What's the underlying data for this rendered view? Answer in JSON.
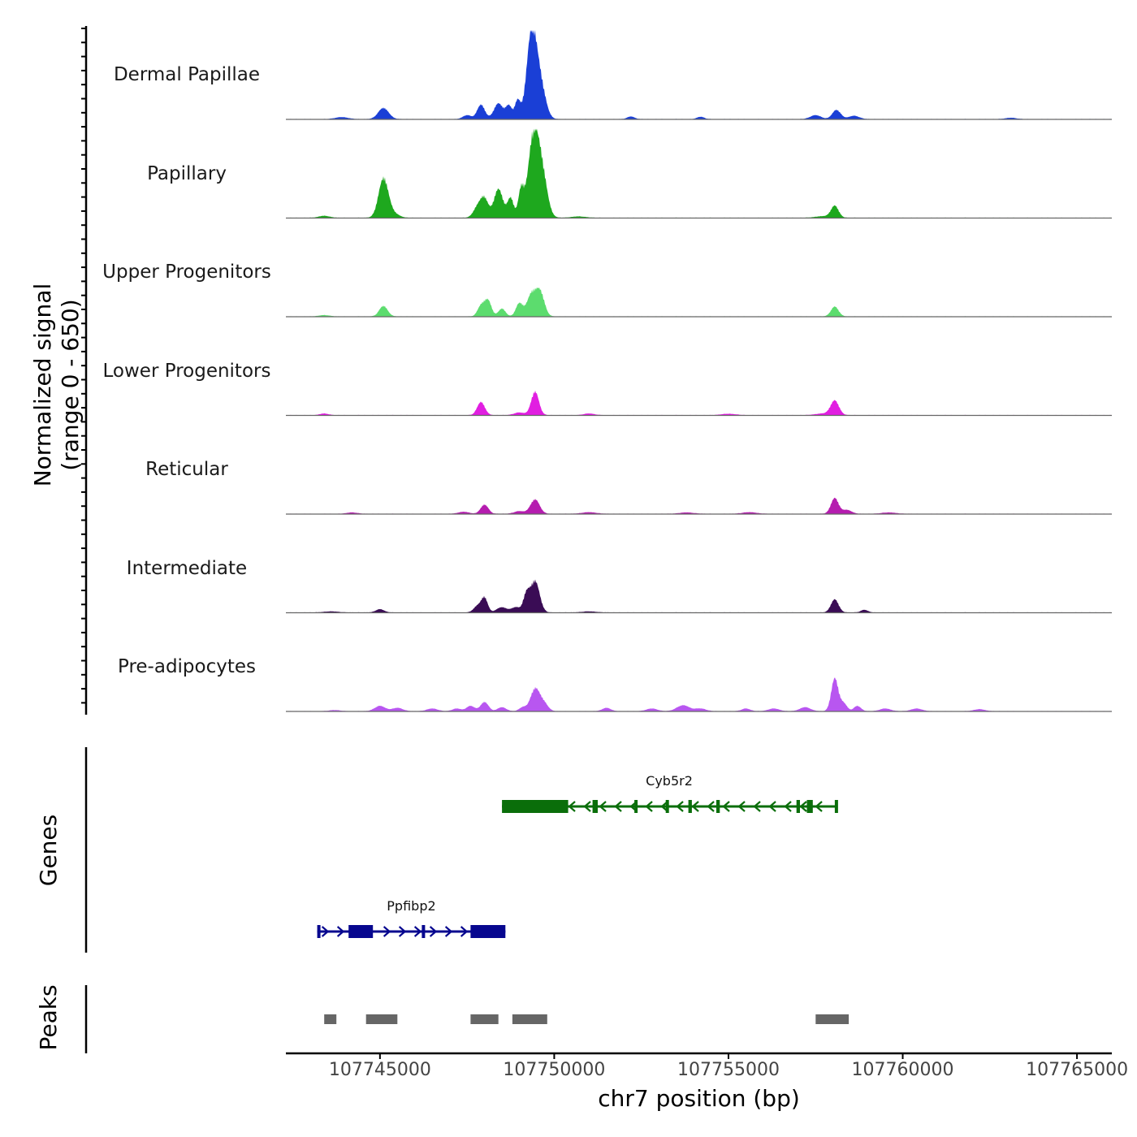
{
  "chart_data": {
    "type": "area",
    "title": "",
    "ylabel": [
      "Normalized signal",
      "(range 0 - 650)"
    ],
    "ylim": [
      0,
      650
    ],
    "xlabel": "chr7 position (bp)",
    "xlim": [
      107742300,
      107766000
    ],
    "x_ticks": [
      107745000,
      107750000,
      107755000,
      107760000,
      107765000
    ],
    "x_tick_labels": [
      "107745000",
      "107750000",
      "107755000",
      "107760000",
      "107765000"
    ],
    "tracks": [
      {
        "name": "Dermal Papillae",
        "color": "#1a3fd6",
        "peaks": [
          [
            107743900,
            15,
            180
          ],
          [
            107745100,
            85,
            150
          ],
          [
            107747500,
            30,
            120
          ],
          [
            107747900,
            110,
            110
          ],
          [
            107748400,
            120,
            130
          ],
          [
            107748700,
            100,
            90
          ],
          [
            107748950,
            140,
            80
          ],
          [
            107749350,
            650,
            140
          ],
          [
            107749600,
            260,
            150
          ],
          [
            107752200,
            20,
            100
          ],
          [
            107754200,
            18,
            100
          ],
          [
            107757500,
            30,
            150
          ],
          [
            107758100,
            70,
            120
          ],
          [
            107758600,
            25,
            150
          ],
          [
            107763100,
            10,
            150
          ]
        ]
      },
      {
        "name": "Papillary",
        "color": "#1ea81e",
        "peaks": [
          [
            107743400,
            15,
            150
          ],
          [
            107745100,
            300,
            140
          ],
          [
            107745400,
            30,
            150
          ],
          [
            107747800,
            80,
            120
          ],
          [
            107748000,
            140,
            110
          ],
          [
            107748400,
            220,
            130
          ],
          [
            107748750,
            150,
            90
          ],
          [
            107749050,
            210,
            80
          ],
          [
            107749400,
            600,
            150
          ],
          [
            107749650,
            320,
            150
          ],
          [
            107750700,
            10,
            200
          ],
          [
            107758050,
            90,
            110
          ],
          [
            107757700,
            12,
            200
          ]
        ]
      },
      {
        "name": "Upper Progenitors",
        "color": "#5cdc6e",
        "peaks": [
          [
            107743400,
            10,
            150
          ],
          [
            107745100,
            80,
            120
          ],
          [
            107747900,
            80,
            100
          ],
          [
            107748100,
            120,
            100
          ],
          [
            107748500,
            60,
            100
          ],
          [
            107749000,
            100,
            100
          ],
          [
            107749350,
            170,
            130
          ],
          [
            107749600,
            180,
            120
          ],
          [
            107758050,
            75,
            110
          ]
        ]
      },
      {
        "name": "Lower Progenitors",
        "color": "#e11ee1",
        "peaks": [
          [
            107743400,
            12,
            120
          ],
          [
            107747900,
            100,
            110
          ],
          [
            107749000,
            20,
            150
          ],
          [
            107749450,
            180,
            110
          ],
          [
            107751000,
            12,
            150
          ],
          [
            107755000,
            10,
            200
          ],
          [
            107757700,
            12,
            200
          ],
          [
            107758050,
            110,
            120
          ]
        ]
      },
      {
        "name": "Reticular",
        "color": "#b51caf",
        "peaks": [
          [
            107744200,
            10,
            150
          ],
          [
            107747400,
            15,
            150
          ],
          [
            107748000,
            70,
            110
          ],
          [
            107749000,
            20,
            150
          ],
          [
            107749450,
            110,
            130
          ],
          [
            107751000,
            12,
            200
          ],
          [
            107753800,
            10,
            200
          ],
          [
            107755600,
            12,
            200
          ],
          [
            107758050,
            120,
            110
          ],
          [
            107758400,
            30,
            130
          ],
          [
            107759600,
            10,
            200
          ]
        ]
      },
      {
        "name": "Intermediate",
        "color": "#3a0c55",
        "peaks": [
          [
            107743600,
            8,
            200
          ],
          [
            107745000,
            25,
            120
          ],
          [
            107747800,
            50,
            110
          ],
          [
            107748000,
            110,
            90
          ],
          [
            107748500,
            40,
            150
          ],
          [
            107748900,
            40,
            120
          ],
          [
            107749200,
            130,
            90
          ],
          [
            107749450,
            240,
            130
          ],
          [
            107751000,
            8,
            200
          ],
          [
            107758050,
            100,
            110
          ],
          [
            107758900,
            20,
            100
          ]
        ]
      },
      {
        "name": "Pre-adipocytes",
        "color": "#b856f0",
        "peaks": [
          [
            107743700,
            8,
            150
          ],
          [
            107745000,
            40,
            150
          ],
          [
            107745500,
            25,
            150
          ],
          [
            107746500,
            20,
            150
          ],
          [
            107747200,
            20,
            120
          ],
          [
            107747600,
            40,
            120
          ],
          [
            107748000,
            70,
            110
          ],
          [
            107748500,
            30,
            120
          ],
          [
            107749100,
            30,
            100
          ],
          [
            107749450,
            170,
            130
          ],
          [
            107749700,
            60,
            120
          ],
          [
            107751500,
            25,
            120
          ],
          [
            107752800,
            20,
            150
          ],
          [
            107753700,
            45,
            180
          ],
          [
            107754200,
            20,
            150
          ],
          [
            107755500,
            20,
            120
          ],
          [
            107756300,
            20,
            150
          ],
          [
            107757200,
            30,
            150
          ],
          [
            107758050,
            250,
            100
          ],
          [
            107758300,
            60,
            100
          ],
          [
            107758700,
            40,
            100
          ],
          [
            107759500,
            20,
            150
          ],
          [
            107760400,
            20,
            150
          ],
          [
            107762200,
            15,
            150
          ]
        ]
      }
    ],
    "genes": [
      {
        "name": "Cyb5r2",
        "strand": "-",
        "start": 107748500,
        "end": 107758100,
        "color": "#0a6e0a",
        "exons": [
          [
            107748500,
            107750400
          ],
          [
            107751100,
            107751250
          ],
          [
            107752300,
            107752380
          ],
          [
            107753200,
            107753280
          ],
          [
            107753850,
            107753950
          ],
          [
            107754650,
            107754750
          ],
          [
            107756950,
            107757050
          ],
          [
            107757250,
            107757420
          ],
          [
            107758050,
            107758100
          ]
        ]
      },
      {
        "name": "Ppfibp2",
        "strand": "+",
        "start": 107743200,
        "end": 107748600,
        "color": "#07078f",
        "exons": [
          [
            107743200,
            107743250
          ],
          [
            107744100,
            107744800
          ],
          [
            107746200,
            107746280
          ],
          [
            107747600,
            107748600
          ]
        ]
      }
    ],
    "peaks_track": [
      [
        107743400,
        107743750
      ],
      [
        107744600,
        107745500
      ],
      [
        107747600,
        107748400
      ],
      [
        107748800,
        107749800
      ],
      [
        107757500,
        107758450
      ]
    ],
    "panel_labels": [
      "Genes",
      "Peaks"
    ]
  }
}
